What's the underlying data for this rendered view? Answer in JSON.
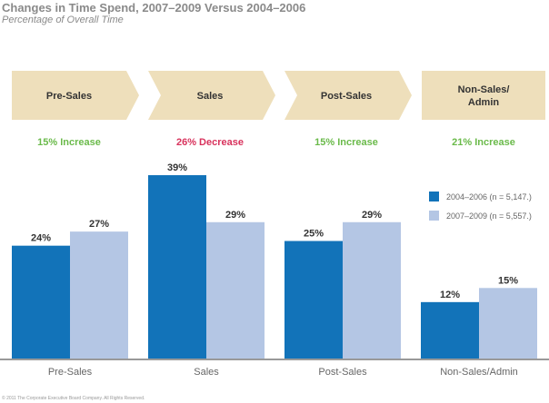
{
  "colors": {
    "series1": "#1273b9",
    "series2": "#b4c6e4",
    "stage_fill": "#eedfbb",
    "increase": "#6aba4a",
    "decrease": "#d8325c",
    "axis": "#999999"
  },
  "stages": [
    {
      "label": "Pre-Sales",
      "change": "15% Increase",
      "direction": "increase"
    },
    {
      "label": "Sales",
      "change": "26% Decrease",
      "direction": "decrease"
    },
    {
      "label": "Post-Sales",
      "change": "15% Increase",
      "direction": "increase"
    },
    {
      "label": "Non-Sales/ Admin",
      "label_lines": [
        "Non-Sales/",
        "Admin"
      ],
      "change": "21% Increase",
      "direction": "increase"
    }
  ],
  "footer": "© 2011 The Corporate Executive Board Company.  All Rights Reserved.",
  "chart_data": {
    "type": "bar",
    "title": "Changes in Time Spend, 2007–2009 Versus 2004–2006",
    "subtitle": "Percentage of Overall Time",
    "categories": [
      "Pre-Sales",
      "Sales",
      "Post-Sales",
      "Non-Sales/Admin"
    ],
    "series": [
      {
        "name": "2004–2006 (n = 5,147.)",
        "values": [
          24,
          39,
          25,
          12
        ],
        "labels": [
          "24%",
          "39%",
          "25%",
          "12%"
        ]
      },
      {
        "name": "2007–2009 (n = 5,557.)",
        "values": [
          27,
          29,
          29,
          15
        ],
        "labels": [
          "27%",
          "29%",
          "29%",
          "15%"
        ]
      }
    ],
    "xlabel": "",
    "ylabel": "",
    "ylim": [
      0,
      40
    ],
    "grid": false,
    "legend": "right"
  }
}
